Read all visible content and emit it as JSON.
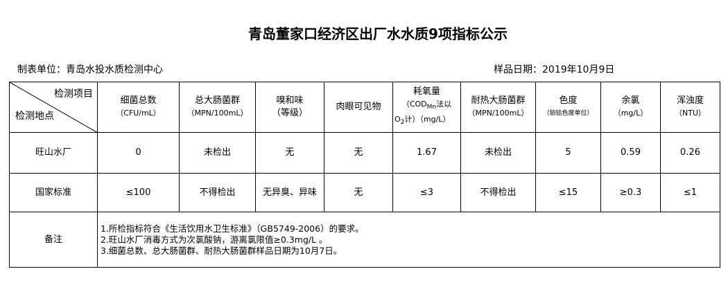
{
  "title": "青岛董家口经济区出厂水水质9项指标公示",
  "unit": "制表单位：青岛水投水质检测中心",
  "date": "样品日期：2019年10月9日",
  "corner": {
    "top": "检测项目",
    "bottom": "检测地点"
  },
  "headers": [
    {
      "name": "细菌总数",
      "unit": "（CFU/mL）"
    },
    {
      "name": "总大肠菌群",
      "unit": "（MPN/100mL）"
    },
    {
      "name": "嗅和味",
      "unit": "（等级）"
    },
    {
      "name": "肉眼可见物",
      "unit": ""
    },
    {
      "name": "耗氧量",
      "unit": "（COD",
      "sub": "Mn",
      "unit2": "法以",
      "unit3": "O",
      "sub2": "2",
      "unit4": "计）（mg/L）"
    },
    {
      "name": "耐热大肠菌群",
      "unit": "（MPN/100mL）"
    },
    {
      "name": "色度",
      "unit": "（铂钴色度单位）"
    },
    {
      "name": "余氯",
      "unit": "（mg/L）"
    },
    {
      "name": "浑浊度",
      "unit": "（NTU）"
    }
  ],
  "rows": [
    {
      "label": "旺山水厂",
      "values": [
        "0",
        "未检出",
        "无",
        "无",
        "1.67",
        "未检出",
        "5",
        "0.59",
        "0.26"
      ]
    },
    {
      "label": "国家标准",
      "values": [
        "≤100",
        "不得检出",
        "无异臭、异味",
        "无",
        "≤3",
        "不得检出",
        "≤15",
        "≥0.3",
        "≤1"
      ]
    }
  ],
  "notes": {
    "label": "备注",
    "lines": [
      "1.所检指标符合《生活饮用水卫生标准》（GB5749-2006）的要求。",
      "2.旺山水厂消毒方式为次氯酸钠，游离氯限值≥0.3mg/L 。",
      "3.细菌总数、总大肠菌群、耐热大肠菌群样品日期为10月7日。"
    ]
  }
}
